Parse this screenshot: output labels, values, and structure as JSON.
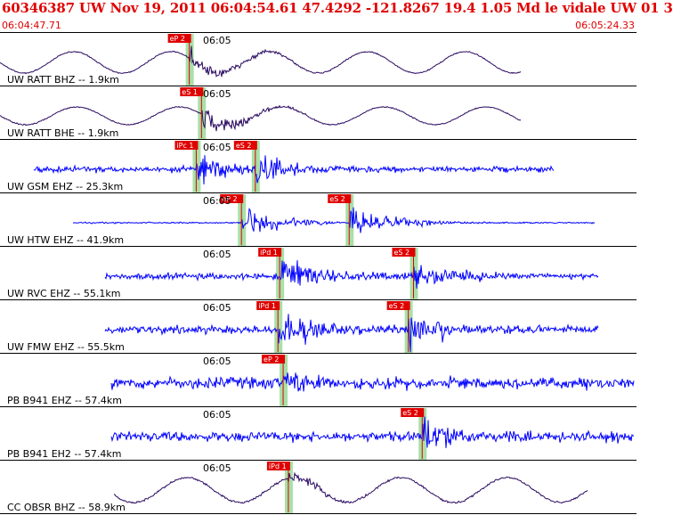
{
  "header": {
    "title": "60346387 UW Nov 19, 2011 06:04:54.61    47.4292 -121.8267 19.4 1.05 Md le vidale UW 01    3",
    "time_start": "06:04:47.71",
    "time_end": "06:05:24.33"
  },
  "chart_data": {
    "type": "line",
    "title": "60346387 UW Nov 19, 2011 06:04:54.61    47.4292 -121.8267 19.4 1.05 Md le vidale UW 01    3",
    "xlabel": "",
    "ylabel": "",
    "x_range": [
      "06:04:47.71",
      "06:05:24.33"
    ],
    "minute_label": "06:05",
    "grid": false,
    "legend": "none",
    "colors": {
      "header_text": "#e00000",
      "trace_blue": "#0000ff",
      "trace_dark": "#2a0a60",
      "pick_box": "#e00000",
      "pick_band": "#a8e0a8",
      "divider": "#000000"
    },
    "series": [
      {
        "name": "UW RATT BHZ -- 1.9km",
        "station": "UW RATT BHZ",
        "distance": "1.9km",
        "trace": "dark",
        "picks": [
          {
            "label": "eP 2",
            "phase": "P",
            "time": "06:04:58.6"
          }
        ]
      },
      {
        "name": "UW RATT BHE -- 1.9km",
        "station": "UW RATT BHE",
        "distance": "1.9km",
        "trace": "dark",
        "picks": [
          {
            "label": "eS 1",
            "phase": "S",
            "time": "06:04:59.3"
          }
        ]
      },
      {
        "name": "UW GSM EHZ -- 25.3km",
        "station": "UW GSM EHZ",
        "distance": "25.3km",
        "trace": "blue",
        "picks": [
          {
            "label": "iPc 1",
            "phase": "P",
            "time": "06:04:59.0"
          },
          {
            "label": "eS 2",
            "phase": "S",
            "time": "06:05:02.4"
          }
        ]
      },
      {
        "name": "UW HTW EHZ -- 41.9km",
        "station": "UW HTW EHZ",
        "distance": "41.9km",
        "trace": "blue",
        "picks": [
          {
            "label": "eP 2",
            "phase": "P",
            "time": "06:05:01.6"
          },
          {
            "label": "eS 2",
            "phase": "S",
            "time": "06:05:07.8"
          }
        ]
      },
      {
        "name": "UW RVC EHZ -- 55.1km",
        "station": "UW RVC EHZ",
        "distance": "55.1km",
        "trace": "blue",
        "picks": [
          {
            "label": "iPd 1",
            "phase": "P",
            "time": "06:05:03.8"
          },
          {
            "label": "eS 2",
            "phase": "S",
            "time": "06:05:11.5"
          }
        ]
      },
      {
        "name": "UW FMW EHZ -- 55.5km",
        "station": "UW FMW EHZ",
        "distance": "55.5km",
        "trace": "blue",
        "picks": [
          {
            "label": "iPd 1",
            "phase": "P",
            "time": "06:05:03.7"
          },
          {
            "label": "eS 2",
            "phase": "S",
            "time": "06:05:11.2"
          }
        ]
      },
      {
        "name": "PB B941 EHZ -- 57.4km",
        "station": "PB B941 EHZ",
        "distance": "57.4km",
        "trace": "blue",
        "picks": [
          {
            "label": "eP 2",
            "phase": "P",
            "time": "06:05:04.0"
          }
        ]
      },
      {
        "name": "PB B941 EH2 -- 57.4km",
        "station": "PB B941 EH2",
        "distance": "57.4km",
        "trace": "blue",
        "picks": [
          {
            "label": "eS 2",
            "phase": "S",
            "time": "06:05:12.0"
          }
        ]
      },
      {
        "name": "CC OBSR BHZ -- 58.9km",
        "station": "CC OBSR BHZ",
        "distance": "58.9km",
        "trace": "dark",
        "picks": [
          {
            "label": "iPd 1",
            "phase": "P",
            "time": "06:05:04.3"
          }
        ]
      }
    ]
  }
}
